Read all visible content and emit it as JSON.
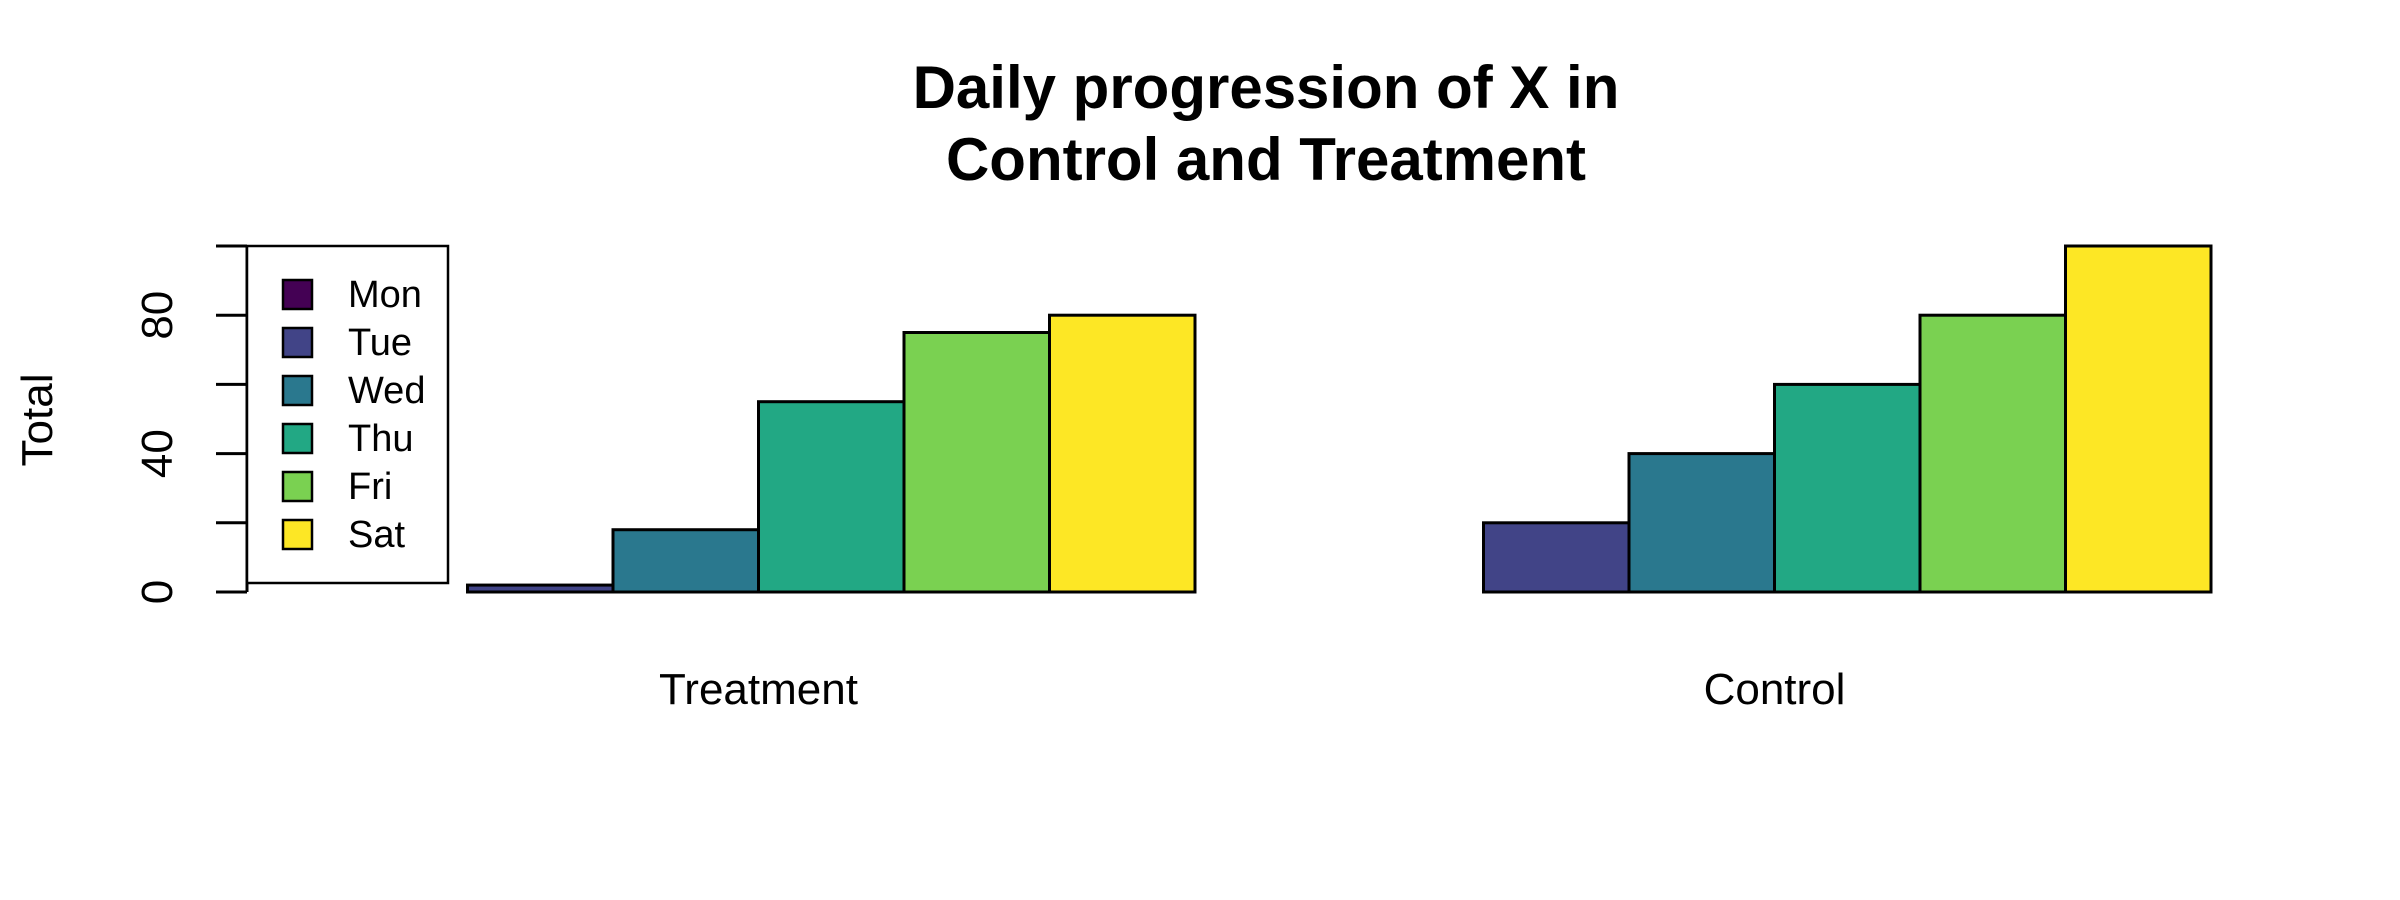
{
  "chart_data": {
    "type": "bar",
    "title": [
      "Daily progression of X in",
      "Control and Treatment"
    ],
    "ylabel": "Total",
    "xlabel": "",
    "ylim": [
      0,
      100
    ],
    "yticks": [
      0,
      20,
      40,
      60,
      80,
      100
    ],
    "ytick_labels": [
      "0",
      "",
      "40",
      "",
      "80",
      ""
    ],
    "categories": [
      "Treatment",
      "Control"
    ],
    "series": [
      {
        "name": "Mon",
        "color": "#440154",
        "values": [
          0,
          0
        ]
      },
      {
        "name": "Tue",
        "color": "#414487",
        "values": [
          2,
          20
        ]
      },
      {
        "name": "Wed",
        "color": "#2A788E",
        "values": [
          18,
          40
        ]
      },
      {
        "name": "Thu",
        "color": "#22A884",
        "values": [
          55,
          60
        ]
      },
      {
        "name": "Fri",
        "color": "#7AD151",
        "values": [
          75,
          80
        ]
      },
      {
        "name": "Sat",
        "color": "#FDE725",
        "values": [
          80,
          100
        ]
      }
    ],
    "grid": false,
    "legend": "top-left"
  }
}
